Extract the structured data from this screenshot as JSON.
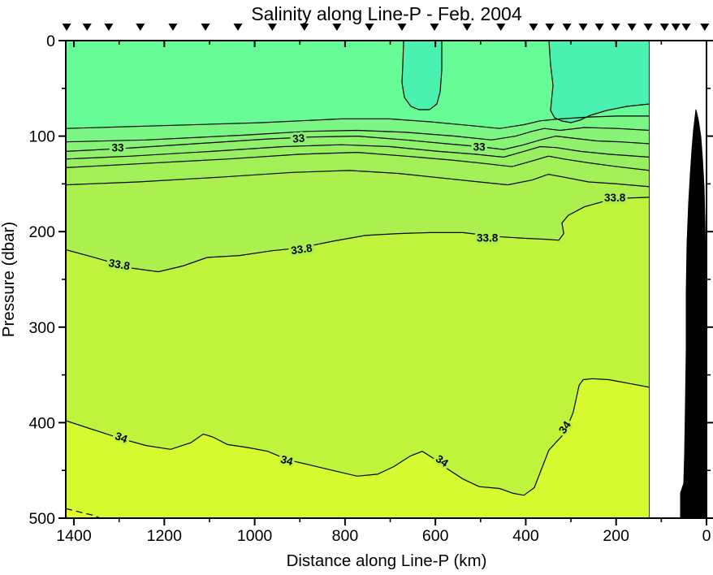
{
  "title": "Salinity along Line-P - Feb. 2004",
  "chart_data": {
    "type": "heatmap",
    "subtype": "filled-contour-ocean-section",
    "title": "Salinity along Line-P - Feb. 2004",
    "xlabel": "Distance along Line-P (km)",
    "ylabel": "Pressure (dbar)",
    "xlim": [
      1425,
      0
    ],
    "ylim": [
      0,
      500
    ],
    "x_axis_reversed": true,
    "y_axis_reversed": true,
    "grid": false,
    "legend": false,
    "x_major_ticks": [
      1400,
      1200,
      1000,
      800,
      600,
      400,
      200,
      0
    ],
    "x_minor_ticks": [
      1300,
      1100,
      900,
      700,
      500,
      300,
      100
    ],
    "y_major_ticks": [
      0,
      100,
      200,
      300,
      400,
      500
    ],
    "y_minor_ticks": [
      50,
      150,
      250,
      350,
      450
    ],
    "data_extent_km": [
      1418,
      126
    ],
    "contour_interval": 0.2,
    "labeled_levels": [
      33,
      33.8,
      34
    ],
    "station_markers_km": [
      1416,
      1371,
      1323,
      1253,
      1181,
      1109,
      1037,
      961,
      890,
      818,
      746,
      674,
      602,
      530,
      455,
      383,
      347,
      309,
      273,
      237,
      201,
      165,
      129,
      93,
      68,
      45,
      4
    ],
    "colors": {
      "background": "#FFFFFF",
      "surface_base": "#66FB96",
      "surface_fresh_patch": "#4BF1AE",
      "contour_line": "#000000",
      "bathymetry": "#000000",
      "label_halo": {
        "33": "#8BF273",
        "33.8": "#ACF04F",
        "34": "#C0F43C"
      }
    },
    "contours": [
      {
        "level": 32.6,
        "fill_below": "#79F683",
        "points": [
          [
            1418,
            92
          ],
          [
            1204,
            89
          ],
          [
            989,
            86
          ],
          [
            809,
            82
          ],
          [
            701,
            82
          ],
          [
            611,
            85
          ],
          [
            521,
            89
          ],
          [
            458,
            92
          ],
          [
            404,
            88
          ],
          [
            368,
            84
          ],
          [
            324,
            82
          ],
          [
            261,
            80
          ],
          [
            198,
            79
          ],
          [
            126,
            79
          ]
        ]
      },
      {
        "level": 32.8,
        "fill_below": "#87F377",
        "points": [
          [
            1418,
            106
          ],
          [
            1240,
            104
          ],
          [
            1024,
            99
          ],
          [
            881,
            95
          ],
          [
            773,
            94
          ],
          [
            665,
            96
          ],
          [
            557,
            100
          ],
          [
            476,
            104
          ],
          [
            422,
            100
          ],
          [
            386,
            95
          ],
          [
            359,
            92
          ],
          [
            324,
            94
          ],
          [
            270,
            91
          ],
          [
            198,
            92
          ],
          [
            126,
            94
          ]
        ]
      },
      {
        "level": 33.0,
        "fill_below": "#90F16C",
        "points": [
          [
            1418,
            116
          ],
          [
            1294,
            113
          ],
          [
            1132,
            108
          ],
          [
            971,
            103
          ],
          [
            881,
            101
          ],
          [
            773,
            100
          ],
          [
            665,
            104
          ],
          [
            575,
            108
          ],
          [
            503,
            111
          ],
          [
            449,
            114
          ],
          [
            404,
            109
          ],
          [
            368,
            104
          ],
          [
            333,
            100
          ],
          [
            297,
            102
          ],
          [
            243,
            105
          ],
          [
            189,
            106
          ],
          [
            126,
            108
          ]
        ]
      },
      {
        "level": 33.2,
        "fill_below": "#9AEF61",
        "points": [
          [
            1418,
            124
          ],
          [
            1276,
            121
          ],
          [
            1096,
            116
          ],
          [
            935,
            111
          ],
          [
            809,
            109
          ],
          [
            701,
            111
          ],
          [
            593,
            116
          ],
          [
            512,
            119
          ],
          [
            449,
            122
          ],
          [
            404,
            116
          ],
          [
            368,
            111
          ],
          [
            333,
            112
          ],
          [
            279,
            116
          ],
          [
            216,
            119
          ],
          [
            126,
            122
          ]
        ]
      },
      {
        "level": 33.4,
        "fill_below": "#A3EF58",
        "points": [
          [
            1418,
            133
          ],
          [
            1258,
            129
          ],
          [
            1060,
            124
          ],
          [
            899,
            119
          ],
          [
            773,
            117
          ],
          [
            665,
            121
          ],
          [
            566,
            125
          ],
          [
            485,
            129
          ],
          [
            431,
            132
          ],
          [
            386,
            126
          ],
          [
            350,
            121
          ],
          [
            315,
            124
          ],
          [
            261,
            128
          ],
          [
            198,
            132
          ],
          [
            126,
            136
          ]
        ]
      },
      {
        "level": 33.6,
        "fill_below": "#ACF04F",
        "points": [
          [
            1418,
            151
          ],
          [
            1258,
            148
          ],
          [
            1078,
            143
          ],
          [
            917,
            138
          ],
          [
            791,
            136
          ],
          [
            683,
            139
          ],
          [
            584,
            144
          ],
          [
            503,
            148
          ],
          [
            440,
            151
          ],
          [
            386,
            146
          ],
          [
            350,
            140
          ],
          [
            315,
            143
          ],
          [
            261,
            148
          ],
          [
            198,
            150
          ],
          [
            126,
            153
          ]
        ]
      },
      {
        "level": 33.8,
        "fill_below": "#C0F43C",
        "points": [
          [
            1418,
            219
          ],
          [
            1348,
            228
          ],
          [
            1276,
            238
          ],
          [
            1213,
            242
          ],
          [
            1159,
            236
          ],
          [
            1105,
            227
          ],
          [
            1033,
            225
          ],
          [
            961,
            220
          ],
          [
            899,
            217
          ],
          [
            827,
            210
          ],
          [
            755,
            204
          ],
          [
            683,
            202
          ],
          [
            611,
            201
          ],
          [
            539,
            201
          ],
          [
            467,
            205
          ],
          [
            404,
            207
          ],
          [
            356,
            208
          ],
          [
            327,
            209
          ],
          [
            316,
            202
          ],
          [
            320,
            191
          ],
          [
            306,
            183
          ],
          [
            270,
            174
          ],
          [
            225,
            168
          ],
          [
            180,
            165
          ],
          [
            126,
            164
          ]
        ]
      },
      {
        "level": 34.0,
        "fill_below": "#D5FA30",
        "points": [
          [
            1418,
            398
          ],
          [
            1366,
            406
          ],
          [
            1294,
            417
          ],
          [
            1240,
            424
          ],
          [
            1186,
            428
          ],
          [
            1141,
            421
          ],
          [
            1114,
            412
          ],
          [
            1093,
            415
          ],
          [
            1060,
            423
          ],
          [
            1016,
            426
          ],
          [
            971,
            430
          ],
          [
            926,
            439
          ],
          [
            872,
            445
          ],
          [
            818,
            451
          ],
          [
            773,
            456
          ],
          [
            728,
            454
          ],
          [
            692,
            446
          ],
          [
            656,
            435
          ],
          [
            629,
            430
          ],
          [
            602,
            438
          ],
          [
            575,
            448
          ],
          [
            539,
            459
          ],
          [
            503,
            467
          ],
          [
            458,
            469
          ],
          [
            428,
            474
          ],
          [
            404,
            476
          ],
          [
            381,
            468
          ],
          [
            363,
            446
          ],
          [
            349,
            429
          ],
          [
            334,
            421
          ],
          [
            320,
            414
          ],
          [
            306,
            402
          ],
          [
            295,
            389
          ],
          [
            288,
            374
          ],
          [
            282,
            361
          ],
          [
            273,
            355
          ],
          [
            252,
            354
          ],
          [
            216,
            355
          ],
          [
            171,
            359
          ],
          [
            126,
            363
          ]
        ]
      },
      {
        "level": 34.2,
        "fill_below": "#E1FC2A",
        "dashed": true,
        "points": [
          [
            1418,
            490
          ],
          [
            1384,
            494
          ],
          [
            1357,
            497
          ],
          [
            1332,
            502
          ]
        ]
      },
      {
        "level": 32.4,
        "fill": "#4BF1AE",
        "closed": true,
        "points": [
          [
            670.4,
            0
          ],
          [
            672.2,
            25.5
          ],
          [
            674,
            44.2
          ],
          [
            668.6,
            59.5
          ],
          [
            654.2,
            68.9
          ],
          [
            636.2,
            72.3
          ],
          [
            612.9,
            72.3
          ],
          [
            596.7,
            66.3
          ],
          [
            589.5,
            53.6
          ],
          [
            585.9,
            30.6
          ],
          [
            585.9,
            0
          ]
        ]
      },
      {
        "level": 32.4,
        "fill": "#4BF1AE",
        "close_top": true,
        "points": [
          [
            348.7,
            0
          ],
          [
            345.1,
            25.5
          ],
          [
            339.7,
            46.8
          ],
          [
            343.3,
            63.8
          ],
          [
            345.1,
            73.1
          ],
          [
            336.1,
            80.8
          ],
          [
            319.9,
            84.2
          ],
          [
            300.2,
            85.9
          ],
          [
            280.4,
            83.3
          ],
          [
            257,
            78.2
          ],
          [
            221.1,
            73.1
          ],
          [
            176.1,
            68.9
          ],
          [
            125.8,
            66.3
          ]
        ]
      }
    ],
    "contour_labels": [
      {
        "text": "33",
        "km": 1303,
        "dbar": 112,
        "rot": 0
      },
      {
        "text": "33",
        "km": 902,
        "dbar": 102,
        "rot": -5
      },
      {
        "text": "33",
        "km": 503,
        "dbar": 111,
        "rot": 0
      },
      {
        "text": "33.8",
        "km": 1301,
        "dbar": 234,
        "rot": 10
      },
      {
        "text": "33.8",
        "km": 895,
        "dbar": 218,
        "rot": -8
      },
      {
        "text": "33.8",
        "km": 485,
        "dbar": 206,
        "rot": 0
      },
      {
        "text": "33.8",
        "km": 203,
        "dbar": 164,
        "rot": 0
      },
      {
        "text": "34",
        "km": 1298,
        "dbar": 415,
        "rot": 20
      },
      {
        "text": "34",
        "km": 931,
        "dbar": 439,
        "rot": 15
      },
      {
        "text": "34",
        "km": 590,
        "dbar": 439,
        "rot": 35
      },
      {
        "text": "34",
        "km": 307,
        "dbar": 403,
        "rot": -55
      }
    ],
    "bathymetry_profile": [
      [
        23.4,
        72.3
      ],
      [
        18,
        83.3
      ],
      [
        12.6,
        100.3
      ],
      [
        9,
        123.3
      ],
      [
        5.4,
        153.1
      ],
      [
        3.6,
        187.1
      ],
      [
        1.8,
        229.6
      ],
      [
        0,
        297.6
      ],
      [
        0,
        500
      ],
      [
        57.5,
        500
      ],
      [
        57.5,
        473.6
      ],
      [
        50.3,
        463.4
      ],
      [
        48.5,
        433.7
      ],
      [
        46.7,
        382.6
      ],
      [
        44.9,
        323.1
      ],
      [
        44.9,
        263.6
      ],
      [
        43.1,
        212.6
      ],
      [
        39.5,
        170.1
      ],
      [
        35.9,
        140.3
      ],
      [
        32.4,
        114.8
      ],
      [
        28.8,
        93.5
      ]
    ]
  }
}
